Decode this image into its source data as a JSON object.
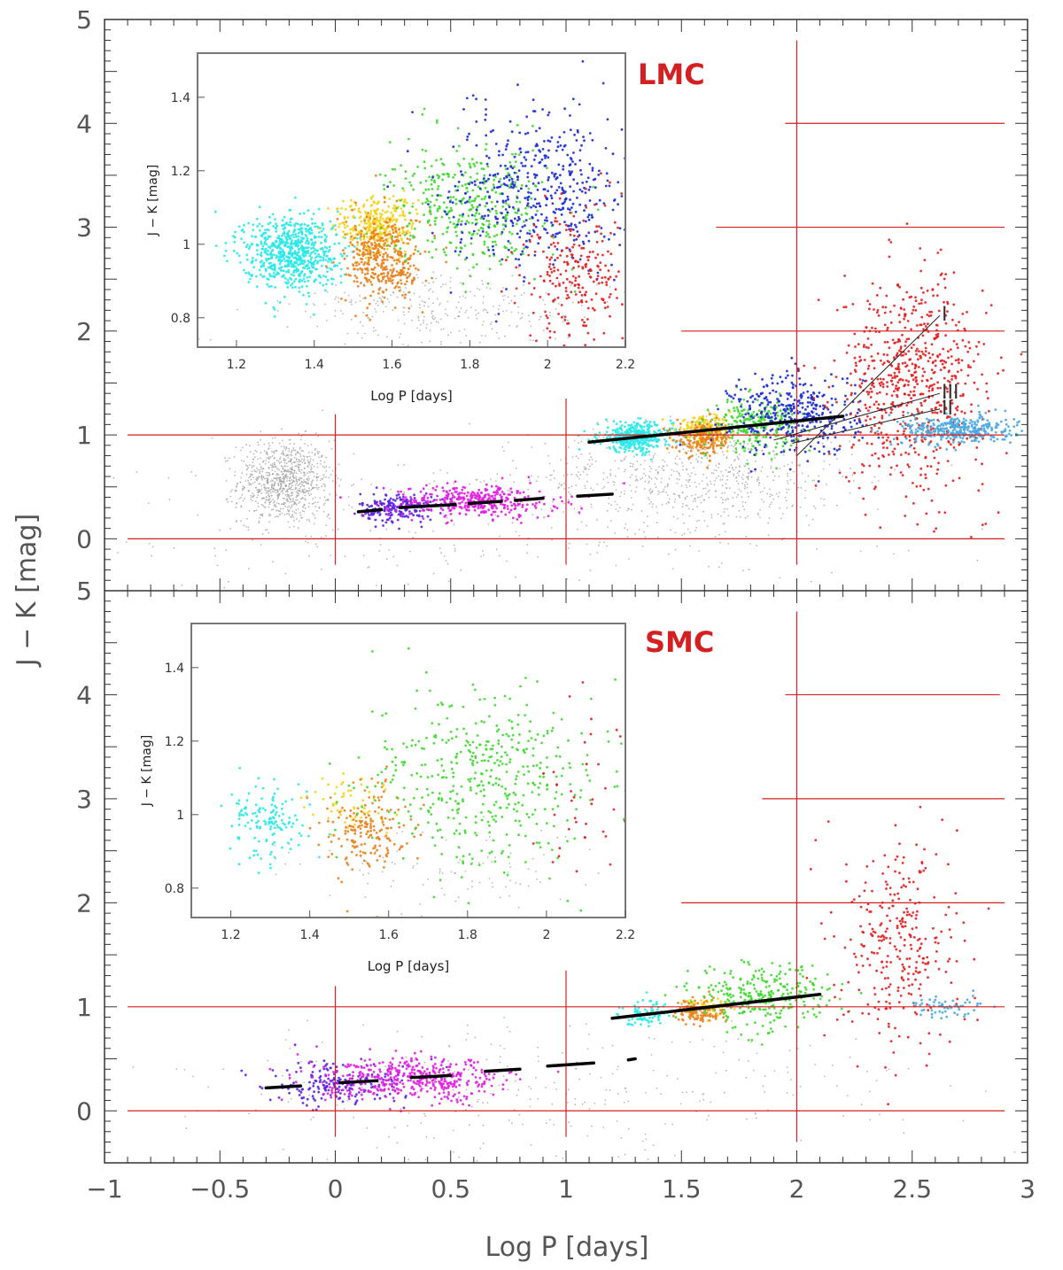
{
  "chart_data": {
    "type": "scatter",
    "xlabel": "Log P [days]",
    "ylabel": "J − K [mag]",
    "xlim": [
      -1,
      3
    ],
    "ylim": [
      -0.5,
      5
    ],
    "x_ticks": [
      "−1",
      "−0.5",
      "0",
      "0.5",
      "1",
      "1.5",
      "2",
      "2.5",
      "3"
    ],
    "y_ticks": [
      "0",
      "1",
      "2",
      "3",
      "4",
      "5"
    ],
    "colors": {
      "grey": "#9a9a9a",
      "violet": "#5b22e0",
      "magenta": "#e020e0",
      "cyan": "#2ee8e8",
      "yellow": "#f5d21a",
      "orange": "#e8821e",
      "green": "#40d830",
      "blue": "#1a2ad0",
      "red": "#e02020",
      "lightblue": "#4aa8e0",
      "guide": "#d42020",
      "fit": "#000000"
    },
    "panels": [
      {
        "label": "LMC",
        "guides": {
          "vlines": [
            {
              "x": 0,
              "y": [
                -0.25,
                1.2
              ]
            },
            {
              "x": 1,
              "y": [
                -0.25,
                1.35
              ]
            },
            {
              "x": 2,
              "y": [
                -0.25,
                4.8
              ]
            }
          ],
          "hlines": [
            {
              "y": 0,
              "x": [
                -0.9,
                2.9
              ]
            },
            {
              "y": 1,
              "x": [
                -0.9,
                2.9
              ]
            },
            {
              "y": 2,
              "x": [
                1.5,
                2.9
              ]
            },
            {
              "y": 3,
              "x": [
                1.65,
                2.9
              ]
            },
            {
              "y": 4,
              "x": [
                1.95,
                2.9
              ]
            }
          ]
        },
        "fit_lines": [
          {
            "x": [
              0.1,
              0.2
            ],
            "y": [
              0.26,
              0.28
            ]
          },
          {
            "x": [
              0.28,
              0.52
            ],
            "y": [
              0.3,
              0.33
            ]
          },
          {
            "x": [
              0.58,
              0.72
            ],
            "y": [
              0.34,
              0.36
            ]
          },
          {
            "x": [
              0.78,
              0.9
            ],
            "y": [
              0.37,
              0.39
            ]
          },
          {
            "x": [
              1.05,
              1.2
            ],
            "y": [
              0.41,
              0.43
            ]
          },
          {
            "x": [
              1.1,
              2.2
            ],
            "y": [
              0.93,
              1.18
            ]
          }
        ],
        "sequence_lines": [
          {
            "name": "I",
            "x": [
              2.0,
              2.62
            ],
            "y": [
              0.8,
              2.15
            ]
          },
          {
            "name": "III",
            "x": [
              1.9,
              2.62
            ],
            "y": [
              0.95,
              1.4
            ]
          },
          {
            "name": "II",
            "x": [
              1.98,
              2.62
            ],
            "y": [
              0.92,
              1.25
            ]
          }
        ],
        "series": [
          {
            "color": "grey",
            "count": 900,
            "cx": -0.22,
            "cy": 0.55,
            "sx": 0.1,
            "sy": 0.2
          },
          {
            "color": "grey",
            "count": 700,
            "cx": 1.55,
            "cy": 0.6,
            "sx": 0.35,
            "sy": 0.25
          },
          {
            "color": "grey",
            "count": 250,
            "cx": 0.5,
            "cy": 0.1,
            "sx": 0.9,
            "sy": 0.35
          },
          {
            "color": "violet",
            "count": 200,
            "cx": 0.27,
            "cy": 0.3,
            "sx": 0.08,
            "sy": 0.07
          },
          {
            "color": "magenta",
            "count": 380,
            "cx": 0.6,
            "cy": 0.36,
            "sx": 0.18,
            "sy": 0.08
          },
          {
            "color": "cyan",
            "count": 380,
            "cx": 1.3,
            "cy": 0.98,
            "sx": 0.08,
            "sy": 0.07
          },
          {
            "color": "yellow",
            "count": 170,
            "cx": 1.6,
            "cy": 1.05,
            "sx": 0.06,
            "sy": 0.06
          },
          {
            "color": "orange",
            "count": 200,
            "cx": 1.6,
            "cy": 0.96,
            "sx": 0.06,
            "sy": 0.08
          },
          {
            "color": "green",
            "count": 250,
            "cx": 1.82,
            "cy": 1.1,
            "sx": 0.09,
            "sy": 0.12
          },
          {
            "color": "blue",
            "count": 380,
            "cx": 2.0,
            "cy": 1.2,
            "sx": 0.14,
            "sy": 0.2
          },
          {
            "color": "red",
            "count": 700,
            "cx": 2.5,
            "cy": 1.5,
            "sx": 0.16,
            "sy": 0.5
          },
          {
            "color": "lightblue",
            "count": 350,
            "cx": 2.7,
            "cy": 1.05,
            "sx": 0.12,
            "sy": 0.07
          }
        ],
        "inset": {
          "xlabel": "Log P [days]",
          "ylabel": "J − K [mag]",
          "xlim": [
            1.1,
            2.2
          ],
          "ylim": [
            0.72,
            1.52
          ],
          "x_ticks": [
            "1.2",
            "1.4",
            "1.6",
            "1.8",
            "2",
            "2.2"
          ],
          "y_ticks": [
            "0.8",
            "1",
            "1.2",
            "1.4"
          ],
          "series": [
            {
              "color": "cyan",
              "count": 700,
              "cx": 1.34,
              "cy": 0.98,
              "sx": 0.06,
              "sy": 0.05
            },
            {
              "color": "yellow",
              "count": 300,
              "cx": 1.56,
              "cy": 1.05,
              "sx": 0.05,
              "sy": 0.04
            },
            {
              "color": "orange",
              "count": 400,
              "cx": 1.58,
              "cy": 0.96,
              "sx": 0.05,
              "sy": 0.06
            },
            {
              "color": "green",
              "count": 400,
              "cx": 1.8,
              "cy": 1.1,
              "sx": 0.1,
              "sy": 0.08
            },
            {
              "color": "blue",
              "count": 500,
              "cx": 1.98,
              "cy": 1.15,
              "sx": 0.12,
              "sy": 0.11
            },
            {
              "color": "red",
              "count": 250,
              "cx": 2.08,
              "cy": 0.92,
              "sx": 0.07,
              "sy": 0.1
            },
            {
              "color": "grey",
              "count": 300,
              "cx": 1.75,
              "cy": 0.82,
              "sx": 0.2,
              "sy": 0.05
            }
          ]
        }
      },
      {
        "label": "SMC",
        "guides": {
          "vlines": [
            {
              "x": 0,
              "y": [
                -0.25,
                1.2
              ]
            },
            {
              "x": 1,
              "y": [
                -0.25,
                1.35
              ]
            },
            {
              "x": 2,
              "y": [
                -0.3,
                4.8
              ]
            }
          ],
          "hlines": [
            {
              "y": 0,
              "x": [
                -0.9,
                2.9
              ]
            },
            {
              "y": 1,
              "x": [
                -0.9,
                2.9
              ]
            },
            {
              "y": 2,
              "x": [
                1.5,
                2.9
              ]
            },
            {
              "y": 3,
              "x": [
                1.85,
                2.9
              ]
            },
            {
              "y": 4,
              "x": [
                1.95,
                2.88
              ]
            }
          ]
        },
        "fit_lines": [
          {
            "x": [
              -0.3,
              -0.15
            ],
            "y": [
              0.22,
              0.24
            ]
          },
          {
            "x": [
              0.02,
              0.18
            ],
            "y": [
              0.27,
              0.29
            ]
          },
          {
            "x": [
              0.33,
              0.5
            ],
            "y": [
              0.32,
              0.34
            ]
          },
          {
            "x": [
              0.65,
              0.8
            ],
            "y": [
              0.38,
              0.4
            ]
          },
          {
            "x": [
              0.92,
              1.12
            ],
            "y": [
              0.43,
              0.46
            ]
          },
          {
            "x": [
              1.27,
              1.3
            ],
            "y": [
              0.49,
              0.5
            ]
          },
          {
            "x": [
              1.2,
              2.1
            ],
            "y": [
              0.89,
              1.12
            ]
          }
        ],
        "series": [
          {
            "color": "grey",
            "count": 300,
            "cx": 0.9,
            "cy": 0.2,
            "sx": 0.8,
            "sy": 0.35
          },
          {
            "color": "violet",
            "count": 200,
            "cx": 0.0,
            "cy": 0.25,
            "sx": 0.15,
            "sy": 0.1
          },
          {
            "color": "magenta",
            "count": 450,
            "cx": 0.35,
            "cy": 0.3,
            "sx": 0.2,
            "sy": 0.1
          },
          {
            "color": "cyan",
            "count": 80,
            "cx": 1.35,
            "cy": 0.95,
            "sx": 0.06,
            "sy": 0.06
          },
          {
            "color": "yellow",
            "count": 60,
            "cx": 1.6,
            "cy": 1.0,
            "sx": 0.05,
            "sy": 0.05
          },
          {
            "color": "orange",
            "count": 120,
            "cx": 1.58,
            "cy": 0.95,
            "sx": 0.05,
            "sy": 0.06
          },
          {
            "color": "green",
            "count": 300,
            "cx": 1.85,
            "cy": 1.1,
            "sx": 0.15,
            "sy": 0.15
          },
          {
            "color": "red",
            "count": 300,
            "cx": 2.45,
            "cy": 1.6,
            "sx": 0.13,
            "sy": 0.5
          },
          {
            "color": "lightblue",
            "count": 60,
            "cx": 2.65,
            "cy": 1.0,
            "sx": 0.08,
            "sy": 0.06
          }
        ],
        "inset": {
          "xlabel": "Log P [days]",
          "ylabel": "J − K [mag]",
          "xlim": [
            1.1,
            2.2
          ],
          "ylim": [
            0.72,
            1.52
          ],
          "x_ticks": [
            "1.2",
            "1.4",
            "1.6",
            "1.8",
            "2",
            "2.2"
          ],
          "y_ticks": [
            "0.8",
            "1",
            "1.2",
            "1.4"
          ],
          "series": [
            {
              "color": "cyan",
              "count": 140,
              "cx": 1.3,
              "cy": 0.98,
              "sx": 0.05,
              "sy": 0.05
            },
            {
              "color": "yellow",
              "count": 60,
              "cx": 1.5,
              "cy": 1.03,
              "sx": 0.05,
              "sy": 0.04
            },
            {
              "color": "orange",
              "count": 180,
              "cx": 1.55,
              "cy": 0.96,
              "sx": 0.05,
              "sy": 0.06
            },
            {
              "color": "green",
              "count": 450,
              "cx": 1.85,
              "cy": 1.1,
              "sx": 0.15,
              "sy": 0.12
            },
            {
              "color": "red",
              "count": 40,
              "cx": 2.1,
              "cy": 1.0,
              "sx": 0.06,
              "sy": 0.12
            },
            {
              "color": "grey",
              "count": 100,
              "cx": 1.75,
              "cy": 0.85,
              "sx": 0.2,
              "sy": 0.06
            }
          ]
        }
      }
    ]
  }
}
